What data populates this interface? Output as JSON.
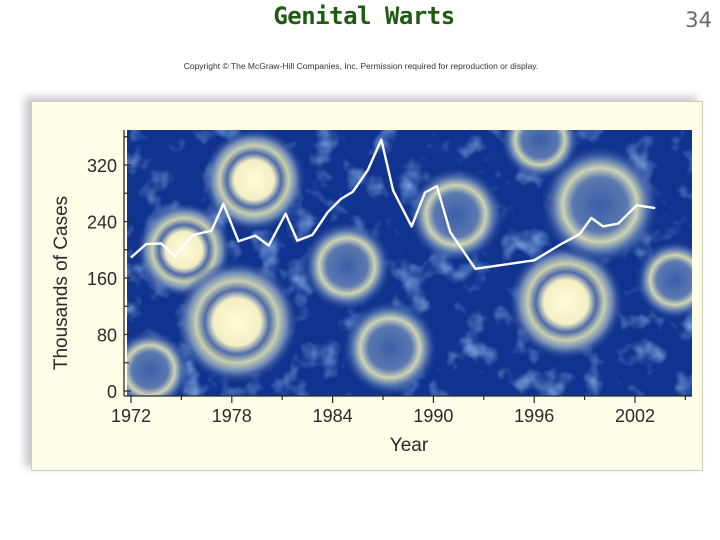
{
  "slide": {
    "title": "Genital Warts",
    "page_number": "34",
    "copyright": "Copyright © The McGraw-Hill Companies, Inc. Permission required for reproduction or display."
  },
  "chart_data": {
    "type": "line",
    "title": "",
    "xlabel": "Year",
    "ylabel": "Thousands of Cases",
    "xlim": [
      1972,
      2006
    ],
    "ylim": [
      0,
      360
    ],
    "x_ticks": [
      1972,
      1978,
      1984,
      1990,
      1996,
      2002
    ],
    "y_ticks": [
      0,
      80,
      160,
      240,
      320
    ],
    "grid": false,
    "background": "micrograph of blue-stained cells",
    "line_color": "#ffffff",
    "series": [
      {
        "name": "",
        "x": [
          1972,
          1972.9,
          1973.8,
          1974.6,
          1975.7,
          1976.8,
          1977.5,
          1978.4,
          1979.4,
          1980.2,
          1981.2,
          1981.9,
          1982.8,
          1983.7,
          1984.5,
          1985.2,
          1986.1,
          1986.9,
          1987.6,
          1988.7,
          1989.5,
          1990.2,
          1991.0,
          1992.5,
          1996.0,
          1997.6,
          1998.7,
          1999.4,
          2000.1,
          2001.0,
          2002.1,
          2003.2
        ],
        "y": [
          189,
          208,
          209,
          191,
          221,
          227,
          265,
          212,
          220,
          206,
          251,
          213,
          221,
          253,
          272,
          282,
          313,
          356,
          284,
          233,
          281,
          290,
          225,
          173,
          185,
          208,
          222,
          245,
          233,
          237,
          263,
          259
        ]
      }
    ]
  }
}
